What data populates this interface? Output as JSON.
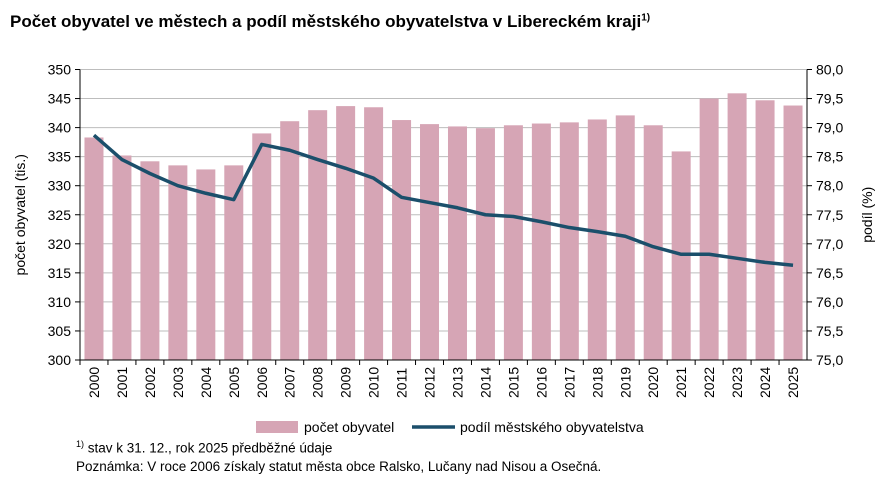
{
  "chart_data": {
    "type": "bar+line",
    "title": "Počet obyvatel ve městech a podíl městského obyvatelstva v Libereckém kraji",
    "title_sup": "1)",
    "categories": [
      "2000",
      "2001",
      "2002",
      "2003",
      "2004",
      "2005",
      "2006",
      "2007",
      "2008",
      "2009",
      "2010",
      "2011",
      "2012",
      "2013",
      "2014",
      "2015",
      "2016",
      "2017",
      "2018",
      "2019",
      "2020",
      "2021",
      "2022",
      "2023",
      "2024",
      "2025"
    ],
    "series": [
      {
        "name": "počet obyvatel",
        "type": "bar",
        "axis": "left",
        "color": "#d6a5b5",
        "values": [
          338.3,
          335.2,
          334.2,
          333.5,
          332.8,
          333.5,
          339.0,
          341.1,
          343.0,
          343.7,
          343.5,
          341.3,
          340.6,
          340.2,
          339.9,
          340.4,
          340.7,
          340.9,
          341.4,
          342.1,
          340.4,
          335.9,
          345.0,
          345.9,
          344.7,
          343.8
        ]
      },
      {
        "name": "podíl městského obyvatelstva",
        "type": "line",
        "axis": "right",
        "color": "#1b4f6b",
        "values": [
          78.87,
          78.45,
          78.21,
          78.0,
          77.87,
          77.76,
          78.71,
          78.61,
          78.45,
          78.3,
          78.13,
          77.8,
          77.71,
          77.62,
          77.5,
          77.47,
          77.38,
          77.28,
          77.21,
          77.13,
          76.95,
          76.82,
          76.82,
          76.75,
          76.68,
          76.63
        ]
      }
    ],
    "ylabel": "počet obyvatel (tis.)",
    "ylim": [
      300,
      350
    ],
    "yticks": [
      "300",
      "305",
      "310",
      "315",
      "320",
      "325",
      "330",
      "335",
      "340",
      "345",
      "350"
    ],
    "y2label": "podíl (%)",
    "y2lim": [
      75,
      80
    ],
    "y2ticks": [
      "75,0",
      "75,5",
      "76,0",
      "76,5",
      "77,0",
      "77,5",
      "78,0",
      "78,5",
      "79,0",
      "79,5",
      "80,0"
    ],
    "grid": true,
    "legend": "bottom"
  },
  "notes": {
    "footnote_sup": "1)",
    "footnote": " stav k 31. 12., rok 2025 předběžné údaje",
    "remark": "Poznámka:  V roce 2006 získaly statut  města obce Ralsko,  Lučany nad Nisou  a Osečná."
  }
}
